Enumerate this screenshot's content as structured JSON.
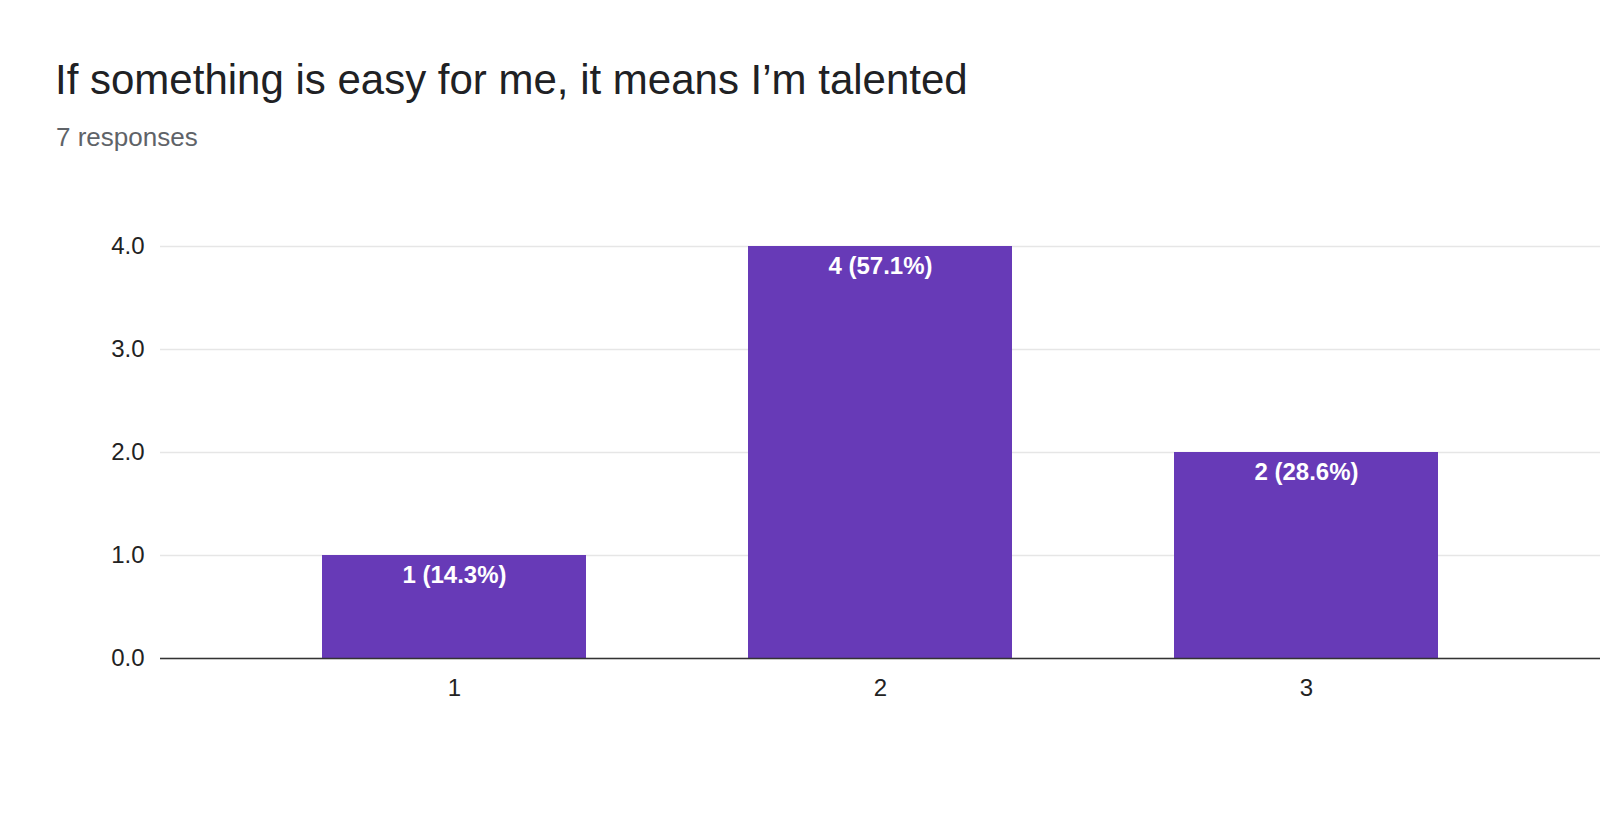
{
  "chart_data": {
    "type": "bar",
    "title": "If something is easy for me, it means I’m talented",
    "subtitle": "7 responses",
    "categories": [
      "1",
      "2",
      "3"
    ],
    "values": [
      1,
      4,
      2
    ],
    "value_labels": [
      "1 (14.3%)",
      "4 (57.1%)",
      "2 (28.6%)"
    ],
    "color": "#673ab7",
    "ylim": [
      0,
      4
    ],
    "yticks": [
      0,
      1,
      2,
      3,
      4
    ],
    "grid": true,
    "data_labels": true
  }
}
